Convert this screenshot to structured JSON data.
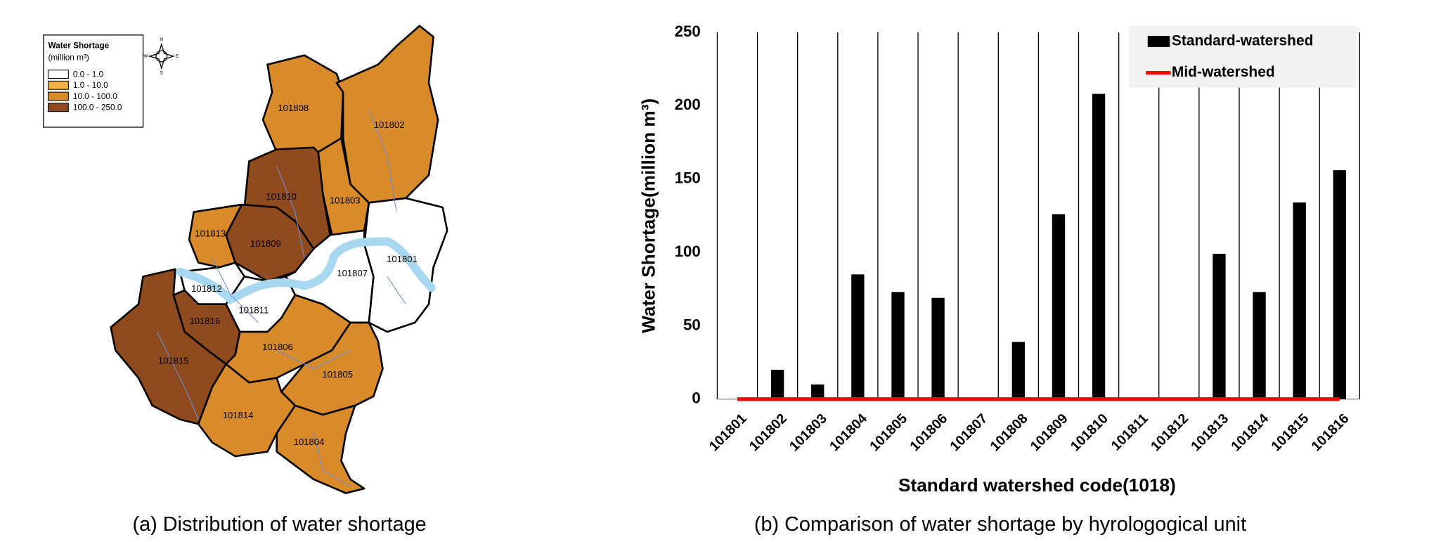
{
  "map": {
    "legend": {
      "title": "Water Shortage",
      "unit": "(million m³)",
      "classes": [
        "0.0 - 1.0",
        "1.0 - 10.0",
        "10.0 - 100.0",
        "100.0 - 250.0"
      ]
    },
    "compass": [
      "N",
      "S",
      "E",
      "W"
    ],
    "regions": [
      {
        "label": "101808"
      },
      {
        "label": "101802"
      },
      {
        "label": "101803"
      },
      {
        "label": "101810"
      },
      {
        "label": "101809"
      },
      {
        "label": "101813"
      },
      {
        "label": "101801"
      },
      {
        "label": "101807"
      },
      {
        "label": "101812"
      },
      {
        "label": "101811"
      },
      {
        "label": "101816"
      },
      {
        "label": "101815"
      },
      {
        "label": "101806"
      },
      {
        "label": "101805"
      },
      {
        "label": "101814"
      },
      {
        "label": "101804"
      }
    ],
    "caption": "(a) Distribution of water shortage"
  },
  "chart_data": {
    "type": "bar",
    "categories": [
      "101801",
      "101802",
      "101803",
      "101804",
      "101805",
      "101806",
      "101807",
      "101808",
      "101809",
      "101810",
      "101811",
      "101812",
      "101813",
      "101814",
      "101815",
      "101816"
    ],
    "series": [
      {
        "name": "Standard-watershed",
        "color": "#000000",
        "values": [
          0,
          20,
          10,
          85,
          73,
          69,
          0,
          39,
          126,
          208,
          0,
          0,
          99,
          73,
          134,
          156
        ]
      },
      {
        "name": "Mid-watershed",
        "color": "#ff0000",
        "type": "line",
        "values": [
          0,
          0,
          0,
          0,
          0,
          0,
          0,
          0,
          0,
          0,
          0,
          0,
          0,
          0,
          0,
          0
        ]
      }
    ],
    "ylim": [
      0,
      250
    ],
    "yticks": [
      0,
      50,
      100,
      150,
      200,
      250
    ],
    "x_label": "Standard watershed code(1018)",
    "y_label": "Water Shortage(million m³)",
    "grid": true,
    "legend_position": "upper right",
    "caption": "(b) Comparison of water shortage by hyrologogical unit"
  }
}
